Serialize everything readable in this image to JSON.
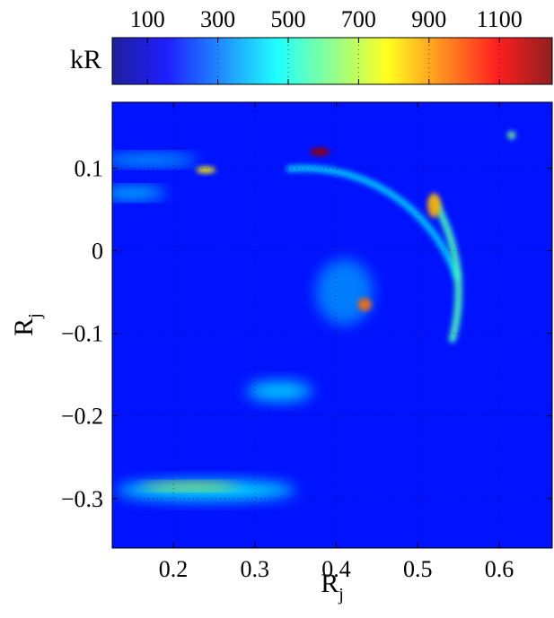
{
  "chart_data": [
    {
      "type": "colorbar",
      "label": "kR",
      "ticks": [
        100,
        300,
        500,
        700,
        900,
        1100
      ],
      "tick_labels": [
        "100",
        "300",
        "500",
        "700",
        "900",
        "1100"
      ],
      "range": [
        0,
        1250
      ],
      "colormap": "jet"
    },
    {
      "type": "heatmap",
      "xlabel": "R",
      "xlabel_sub": "j",
      "ylabel": "R",
      "ylabel_sub": "j",
      "xlim": [
        0.125,
        0.665
      ],
      "ylim": [
        -0.36,
        0.18
      ],
      "xticks": [
        0.2,
        0.3,
        0.4,
        0.5,
        0.6
      ],
      "xtick_labels": [
        "0.2",
        "0.3",
        "0.4",
        "0.5",
        "0.6"
      ],
      "yticks": [
        0.1,
        0,
        -0.1,
        -0.2,
        -0.3
      ],
      "ytick_labels": [
        "0.1",
        "0",
        "−0.1",
        "−0.2",
        "−0.3"
      ],
      "grid": true,
      "background_value": 180,
      "features": [
        {
          "kind": "arc",
          "cx": 0.36,
          "cy": -0.1,
          "r": 0.2,
          "from_deg": 20,
          "to_deg": 95,
          "value": 420,
          "width": 0.008
        },
        {
          "kind": "arc",
          "cx": 0.33,
          "cy": -0.05,
          "r": 0.22,
          "from_deg": -15,
          "to_deg": 30,
          "value": 560,
          "width": 0.009
        },
        {
          "kind": "ellipse",
          "x": 0.38,
          "y": 0.12,
          "rx": 0.012,
          "ry": 0.005,
          "value": 1220
        },
        {
          "kind": "ellipse",
          "x": 0.24,
          "y": 0.098,
          "rx": 0.012,
          "ry": 0.004,
          "value": 800
        },
        {
          "kind": "ellipse",
          "x": 0.52,
          "y": 0.055,
          "rx": 0.008,
          "ry": 0.015,
          "value": 880
        },
        {
          "kind": "ellipse",
          "x": 0.435,
          "y": -0.065,
          "rx": 0.008,
          "ry": 0.008,
          "value": 960
        },
        {
          "kind": "ellipse",
          "x": 0.22,
          "y": -0.285,
          "rx": 0.06,
          "ry": 0.004,
          "value": 800
        },
        {
          "kind": "ellipse",
          "x": 0.615,
          "y": 0.14,
          "rx": 0.005,
          "ry": 0.005,
          "value": 620
        },
        {
          "kind": "ellipse",
          "x": 0.15,
          "y": 0.07,
          "rx": 0.04,
          "ry": 0.006,
          "value": 480
        },
        {
          "kind": "ellipse",
          "x": 0.17,
          "y": 0.11,
          "rx": 0.06,
          "ry": 0.006,
          "value": 420
        },
        {
          "kind": "ellipse",
          "x": 0.33,
          "y": -0.17,
          "rx": 0.04,
          "ry": 0.012,
          "value": 420
        },
        {
          "kind": "ellipse",
          "x": 0.24,
          "y": -0.29,
          "rx": 0.11,
          "ry": 0.012,
          "value": 450
        },
        {
          "kind": "ellipse",
          "x": 0.41,
          "y": -0.05,
          "rx": 0.035,
          "ry": 0.04,
          "value": 320
        }
      ]
    }
  ]
}
